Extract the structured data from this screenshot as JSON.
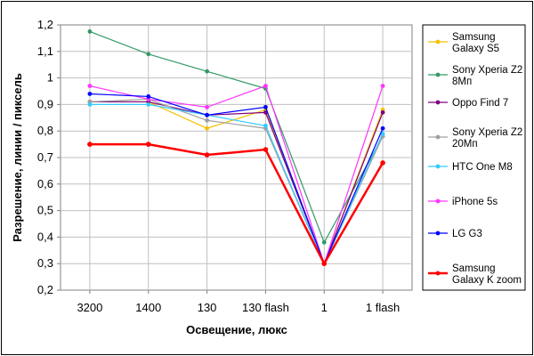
{
  "chart_data": {
    "type": "line",
    "title": "",
    "xlabel": "Освещение, люкс",
    "ylabel": "Разрешение, линии / пиксель",
    "categories": [
      "3200",
      "1400",
      "130",
      "130 flash",
      "1",
      "1 flash"
    ],
    "ylim": [
      0.2,
      1.2
    ],
    "yticks": [
      "0,2",
      "0,3",
      "0,4",
      "0,5",
      "0,6",
      "0,7",
      "0,8",
      "0,9",
      "1",
      "1,1",
      "1,2"
    ],
    "grid": true,
    "legend_position": "right",
    "series": [
      {
        "name": "Samsung Galaxy S5",
        "legend_lines": [
          "Samsung",
          "Galaxy S5"
        ],
        "color": "#f5c000",
        "values": [
          0.91,
          0.91,
          0.81,
          0.88,
          0.3,
          0.88
        ]
      },
      {
        "name": "Sony Xperia Z2 8Мп",
        "legend_lines": [
          "Sony Xperia Z2",
          "8Мп"
        ],
        "color": "#339966",
        "values": [
          1.175,
          1.09,
          1.025,
          0.96,
          0.38,
          0.78
        ]
      },
      {
        "name": "Oppo Find 7",
        "legend_lines": [
          "Oppo Find 7"
        ],
        "color": "#800080",
        "values": [
          0.91,
          0.91,
          0.86,
          0.87,
          0.3,
          0.87
        ]
      },
      {
        "name": "Sony Xperia Z2 20Мп",
        "legend_lines": [
          "Sony Xperia Z2",
          "20Мп"
        ],
        "color": "#a0a0a0",
        "values": [
          0.91,
          0.92,
          0.84,
          0.81,
          0.3,
          0.78
        ]
      },
      {
        "name": "HTC One M8",
        "legend_lines": [
          "HTC One M8"
        ],
        "color": "#33ccff",
        "values": [
          0.9,
          0.9,
          0.86,
          0.82,
          0.3,
          0.79
        ]
      },
      {
        "name": "iPhone 5s",
        "legend_lines": [
          "iPhone 5s"
        ],
        "color": "#ff33ff",
        "values": [
          0.97,
          0.92,
          0.89,
          0.97,
          0.3,
          0.97
        ]
      },
      {
        "name": "LG G3",
        "legend_lines": [
          "LG G3"
        ],
        "color": "#0000ff",
        "values": [
          0.94,
          0.93,
          0.86,
          0.89,
          0.3,
          0.81
        ]
      },
      {
        "name": "Samsung Galaxy K zoom",
        "legend_lines": [
          "Samsung",
          "Galaxy K zoom"
        ],
        "color": "#ff0000",
        "thick": true,
        "values": [
          0.75,
          0.75,
          0.71,
          0.73,
          0.3,
          0.68
        ]
      }
    ]
  }
}
